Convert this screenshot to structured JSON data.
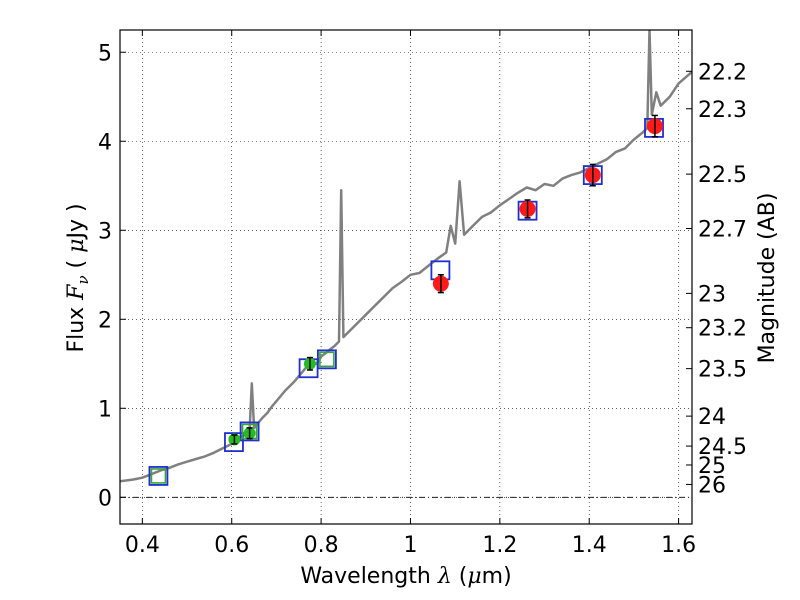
{
  "chart_data": {
    "type": "scatter",
    "xlabel_parts": [
      "Wavelength ",
      "λ",
      " (",
      "μ",
      "m)"
    ],
    "ylabel_parts": [
      "Flux ",
      "F",
      "ν",
      " ( ",
      "μ",
      "Jy )"
    ],
    "y2label": "Magnitude (AB)",
    "xlim": [
      0.35,
      1.63
    ],
    "ylim": [
      -0.3,
      5.25
    ],
    "x_ticks": [
      0.4,
      0.6,
      0.8,
      1.0,
      1.2,
      1.4,
      1.6
    ],
    "x_tick_labels": [
      "0.4",
      "0.6",
      "0.8",
      "1",
      "1.2",
      "1.4",
      "1.6"
    ],
    "y_ticks": [
      0,
      1,
      2,
      3,
      4,
      5
    ],
    "y_tick_labels": [
      "0",
      "1",
      "2",
      "3",
      "4",
      "5"
    ],
    "mag_ticks": [
      22.2,
      22.3,
      22.5,
      22.7,
      23,
      23.2,
      23.5,
      24,
      24.5,
      25,
      26
    ],
    "mag_tick_labels": [
      "22.2",
      "22.3",
      "22.5",
      "22.7",
      "23",
      "23.2",
      "23.5",
      "24",
      "24.5",
      "25",
      "26"
    ],
    "grid": true,
    "colors": {
      "spectrum": "#808080",
      "model_box": "#1f2fd0",
      "green_box": "#3aa33a",
      "red_point": "#ff1a1a",
      "green_point": "#22bb22",
      "errorbar": "#000000"
    },
    "spectrum": {
      "name": "model spectrum",
      "x": [
        0.35,
        0.38,
        0.4,
        0.42,
        0.44,
        0.46,
        0.48,
        0.5,
        0.52,
        0.54,
        0.56,
        0.58,
        0.6,
        0.61,
        0.62,
        0.63,
        0.64,
        0.645,
        0.65,
        0.66,
        0.67,
        0.68,
        0.69,
        0.7,
        0.72,
        0.74,
        0.76,
        0.77,
        0.78,
        0.79,
        0.8,
        0.81,
        0.82,
        0.83,
        0.84,
        0.845,
        0.85,
        0.86,
        0.88,
        0.9,
        0.92,
        0.94,
        0.96,
        0.98,
        1.0,
        1.02,
        1.04,
        1.06,
        1.08,
        1.09,
        1.1,
        1.11,
        1.12,
        1.14,
        1.16,
        1.18,
        1.2,
        1.22,
        1.24,
        1.26,
        1.28,
        1.3,
        1.32,
        1.34,
        1.36,
        1.38,
        1.4,
        1.42,
        1.44,
        1.46,
        1.48,
        1.5,
        1.52,
        1.53,
        1.535,
        1.54,
        1.55,
        1.56,
        1.58,
        1.6,
        1.63
      ],
      "y": [
        0.18,
        0.2,
        0.22,
        0.26,
        0.3,
        0.33,
        0.37,
        0.4,
        0.43,
        0.46,
        0.5,
        0.55,
        0.6,
        0.64,
        0.68,
        0.7,
        0.75,
        1.28,
        0.78,
        0.84,
        0.9,
        0.95,
        1.02,
        1.08,
        1.2,
        1.3,
        1.42,
        1.48,
        1.52,
        1.5,
        1.58,
        1.62,
        1.66,
        1.7,
        1.75,
        3.45,
        1.8,
        1.85,
        1.95,
        2.05,
        2.15,
        2.25,
        2.35,
        2.42,
        2.5,
        2.52,
        2.6,
        2.68,
        2.75,
        3.05,
        2.85,
        3.55,
        2.95,
        3.05,
        3.15,
        3.2,
        3.28,
        3.35,
        3.42,
        3.48,
        3.45,
        3.52,
        3.5,
        3.58,
        3.62,
        3.65,
        3.7,
        3.75,
        3.8,
        3.88,
        3.92,
        4.02,
        4.1,
        4.15,
        5.25,
        4.3,
        4.55,
        4.4,
        4.5,
        4.65,
        4.78
      ]
    },
    "model_boxes": [
      {
        "x": 0.436,
        "y": 0.24,
        "style": "green"
      },
      {
        "x": 0.605,
        "y": 0.62,
        "style": "blue"
      },
      {
        "x": 0.64,
        "y": 0.74,
        "style": "green"
      },
      {
        "x": 0.772,
        "y": 1.45,
        "style": "blue"
      },
      {
        "x": 0.813,
        "y": 1.55,
        "style": "green"
      },
      {
        "x": 1.067,
        "y": 2.55,
        "style": "blue"
      },
      {
        "x": 1.262,
        "y": 3.22,
        "style": "blue"
      },
      {
        "x": 1.408,
        "y": 3.62,
        "style": "blue"
      },
      {
        "x": 1.545,
        "y": 4.15,
        "style": "blue"
      }
    ],
    "observed_green": [
      {
        "x": 0.606,
        "y": 0.65,
        "err": 0.05
      },
      {
        "x": 0.64,
        "y": 0.72,
        "err": 0.06
      },
      {
        "x": 0.775,
        "y": 1.5,
        "err": 0.07
      }
    ],
    "observed_red": [
      {
        "x": 1.068,
        "y": 2.4,
        "err": 0.1
      },
      {
        "x": 1.262,
        "y": 3.24,
        "err": 0.1
      },
      {
        "x": 1.408,
        "y": 3.62,
        "err": 0.12
      },
      {
        "x": 1.547,
        "y": 4.17,
        "err": 0.12
      }
    ]
  }
}
